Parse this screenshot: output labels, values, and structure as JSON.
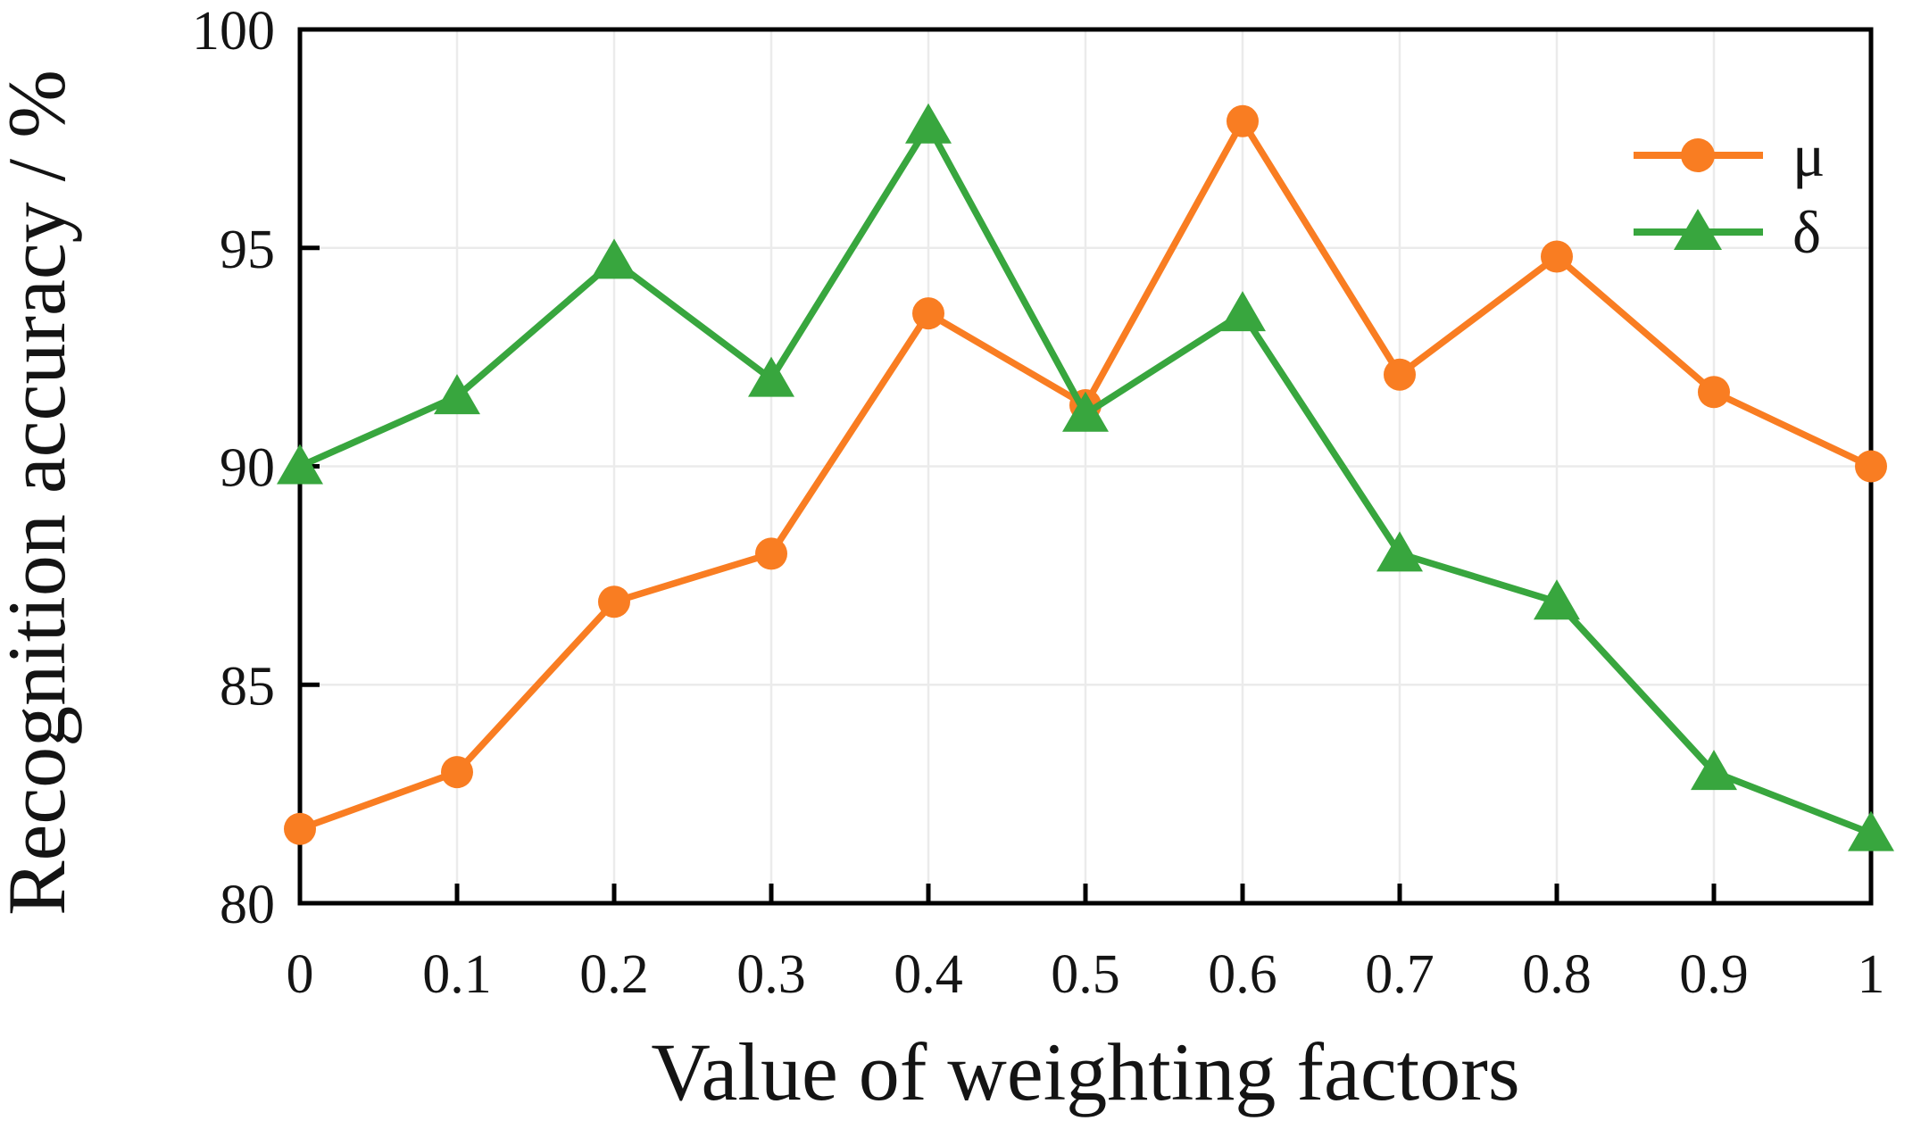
{
  "chart_data": {
    "type": "line",
    "title": "",
    "xlabel": "Value of weighting factors",
    "ylabel": "Recognition accuracy / %",
    "xlim": [
      0,
      1
    ],
    "ylim": [
      80,
      100
    ],
    "grid": true,
    "x": [
      0,
      0.1,
      0.2,
      0.3,
      0.4,
      0.5,
      0.6,
      0.7,
      0.8,
      0.9,
      1
    ],
    "x_tick_labels": [
      "0",
      "0.1",
      "0.2",
      "0.3",
      "0.4",
      "0.5",
      "0.6",
      "0.7",
      "0.8",
      "0.9",
      "1"
    ],
    "y_ticks": [
      80,
      85,
      90,
      95,
      100
    ],
    "y_tick_labels": [
      "80",
      "85",
      "90",
      "95",
      "100"
    ],
    "legend": {
      "position": "top-right",
      "entries": [
        "μ",
        "δ"
      ]
    },
    "series": [
      {
        "name": "μ",
        "marker": "circle",
        "color": "#F97D22",
        "values": [
          81.7,
          83.0,
          86.9,
          88.0,
          93.5,
          91.4,
          97.9,
          92.1,
          94.8,
          91.7,
          90.0
        ]
      },
      {
        "name": "δ",
        "marker": "triangle",
        "color": "#38A63E",
        "values": [
          90.0,
          91.6,
          94.7,
          92.0,
          97.8,
          91.2,
          93.5,
          88.0,
          86.9,
          83.0,
          81.6
        ]
      }
    ],
    "colors": {
      "grid": "#EBEBEB",
      "axis": "#000000",
      "text": "#141414",
      "background": "#FFFFFF"
    }
  }
}
